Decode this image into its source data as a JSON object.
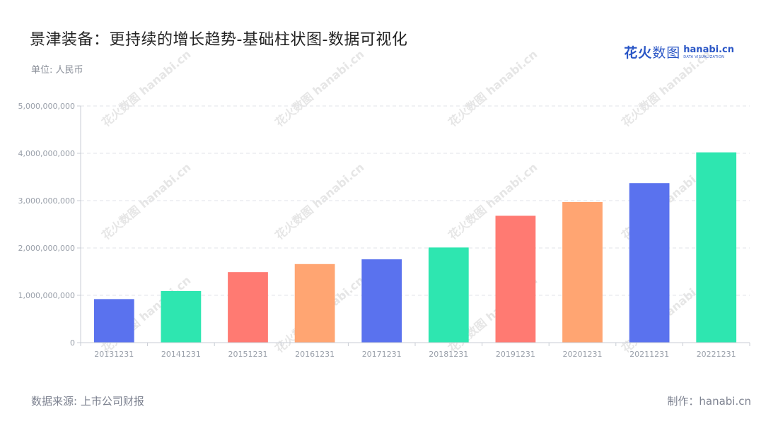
{
  "header": {
    "title": "景津装备：更持续的增长趋势-基础柱状图-数据可视化",
    "unit": "单位: 人民币"
  },
  "logo": {
    "cn_bold": "花火",
    "cn_light": "数图",
    "en": "hanabi.cn",
    "en_sub": "DATA VISUALIZATION",
    "watermark": "花火数图 hanabi.cn"
  },
  "footer": {
    "source": "数据来源: 上市公司财报",
    "made_by": "制作：hanabi.cn"
  },
  "chart_data": {
    "type": "bar",
    "categories": [
      "20131231",
      "20141231",
      "20151231",
      "20161231",
      "20171231",
      "20181231",
      "20191231",
      "20201231",
      "20211231",
      "20221231"
    ],
    "values": [
      920000000,
      1090000000,
      1490000000,
      1660000000,
      1760000000,
      2010000000,
      2680000000,
      2970000000,
      3370000000,
      4020000000
    ],
    "ylim": [
      0,
      5000000000
    ],
    "yticks": [
      0,
      1000000000,
      2000000000,
      3000000000,
      4000000000,
      5000000000
    ],
    "ytick_labels": [
      "0",
      "1,000,000,000",
      "2,000,000,000",
      "3,000,000,000",
      "4,000,000,000",
      "5,000,000,000"
    ],
    "grid": true,
    "bar_colors": [
      "#5a72ee",
      "#2ee6b0",
      "#ff7a72",
      "#ffa572"
    ]
  }
}
